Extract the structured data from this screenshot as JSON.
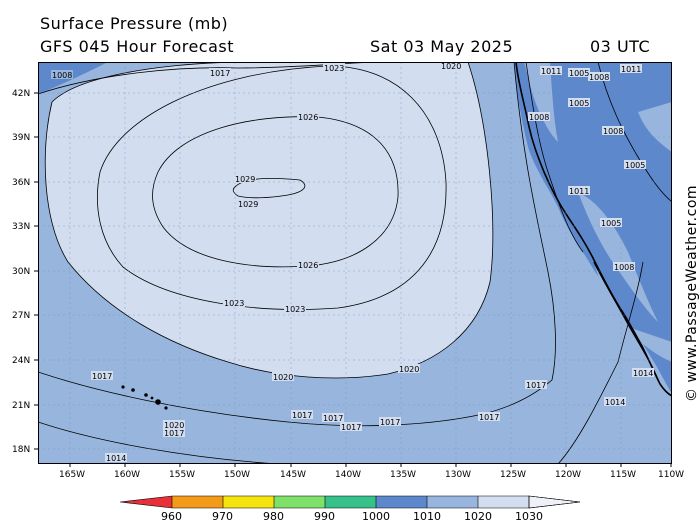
{
  "header": {
    "title": "Surface Pressure (mb)",
    "model": "GFS 045 Hour Forecast",
    "date": "Sat 03 May 2025",
    "time": "03 UTC"
  },
  "credit": "© www.PassageWeather.com",
  "axes": {
    "lat_ticks": [
      "42N",
      "39N",
      "36N",
      "33N",
      "30N",
      "27N",
      "24N",
      "21N",
      "18N"
    ],
    "lon_ticks": [
      "165W",
      "160W",
      "155W",
      "150W",
      "145W",
      "140W",
      "135W",
      "130W",
      "125W",
      "120W",
      "115W",
      "110W"
    ]
  },
  "isobar_labels": {
    "l1029a": "1029",
    "l1029b": "1029",
    "l1026a": "1026",
    "l1026b": "1026",
    "l1023a": "1023",
    "l1023b": "1023",
    "l1023c": "1023",
    "l1020a": "1020",
    "l1020b": "1020",
    "l1020c": "1020",
    "l1020d": "1020",
    "l1017a": "1017",
    "l1017b": "1017",
    "l1017c": "1017",
    "l1017d": "1017",
    "l1017e": "1017",
    "l1017f": "1017",
    "l1017g": "1017",
    "l1017h": "1017",
    "l1017i": "1017",
    "l1014a": "1014",
    "l1014b": "1014",
    "l1014c": "1014",
    "l1011a": "1011",
    "l1011b": "1011",
    "l1011c": "1011",
    "l1008a": "1008",
    "l1008b": "1008",
    "l1008c": "1008",
    "l1008d": "1008",
    "l1008e": "1008",
    "l1005a": "1005",
    "l1005b": "1005",
    "l1005c": "1005",
    "l1005d": "1005"
  },
  "legend": {
    "labels": [
      "960",
      "970",
      "980",
      "990",
      "1000",
      "1010",
      "1020",
      "1030"
    ],
    "colors": [
      "#e8303a",
      "#f39a1a",
      "#f5e40f",
      "#7fe06a",
      "#38c08a",
      "#5d88cc",
      "#98b6dd",
      "#d2def0"
    ]
  }
}
